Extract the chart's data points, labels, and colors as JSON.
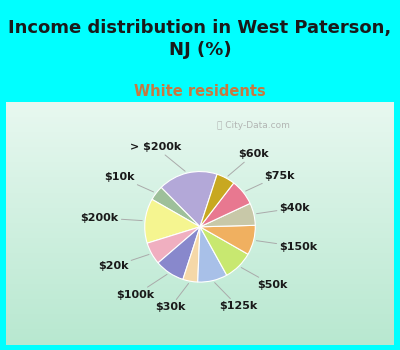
{
  "title": "Income distribution in West Paterson,\nNJ (%)",
  "subtitle": "White residents",
  "background_color": "#00FFFF",
  "chart_bg_top": "#f0f8f0",
  "chart_bg_bottom": "#c8ecd8",
  "watermark": "ⓘ City-Data.com",
  "labels": [
    "> $200k",
    "$10k",
    "$200k",
    "$20k",
    "$100k",
    "$30k",
    "$125k",
    "$50k",
    "$150k",
    "$40k",
    "$75k",
    "$60k"
  ],
  "values": [
    16,
    4,
    12,
    6,
    8,
    4,
    8,
    8,
    8,
    6,
    7,
    5
  ],
  "colors": [
    "#b3a8d8",
    "#9ec09a",
    "#f5f590",
    "#f0afc0",
    "#8888cc",
    "#f5d8a8",
    "#a8c0e8",
    "#c8e870",
    "#f0b060",
    "#c8c8a8",
    "#e87890",
    "#c8a820"
  ],
  "startangle": 72,
  "label_fontsize": 8,
  "title_fontsize": 13,
  "subtitle_fontsize": 10.5,
  "subtitle_color": "#c87840",
  "title_color": "#1a1a1a"
}
